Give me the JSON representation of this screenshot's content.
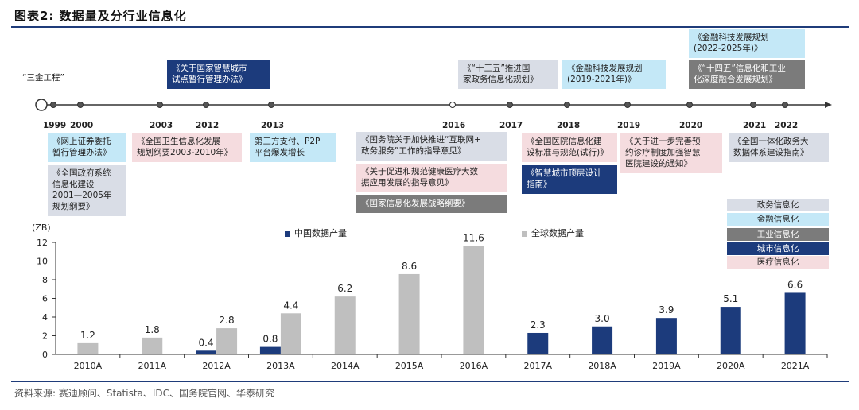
{
  "title": "图表2:  数据量及分行业信息化",
  "source": "资料来源: 赛迪顾问、Statista、IDC、国务院官网、华泰研究",
  "colors": {
    "china": "#1c3b7c",
    "global": "#bfbfbf",
    "gov": "#d9dde6",
    "fin": "#c4e8f7",
    "ind": "#7b7b7b",
    "city": "#1c3b7c",
    "med": "#f5dcdf"
  },
  "timeline": {
    "years": [
      "1999",
      "2000",
      "2003",
      "2012",
      "2013",
      "2016",
      "2017",
      "2018",
      "2019",
      "2020",
      "2021",
      "2022"
    ],
    "events_above": [
      {
        "text": "“三金工程”",
        "cat": "plain"
      },
      {
        "text": "《关于国家智慧城市\n试点暂行管理办法》",
        "cat": "city"
      },
      {
        "text": "《“十三五”推进国\n家政务信息化规划》",
        "cat": "gov"
      },
      {
        "text": "《金融科技发展规划\n(2019-2021年)》",
        "cat": "fin"
      },
      {
        "text": "《金融科技发展规划\n(2022-2025年)》",
        "cat": "fin"
      },
      {
        "text": "《“十四五”信息化和工业\n化深度融合发展规划》",
        "cat": "ind"
      }
    ],
    "events_below": [
      {
        "text": "《网上证券委托\n暂行管理办法》",
        "cat": "fin"
      },
      {
        "text": "《全国政府系统\n信息化建设\n2001—2005年\n规划纲要》",
        "cat": "gov"
      },
      {
        "text": "《全国卫生信息化发展\n规划纲要2003-2010年》",
        "cat": "med"
      },
      {
        "text": "第三方支付、P2P\n平台爆发增长",
        "cat": "fin"
      },
      {
        "text": "《国务院关于加快推进“互联网+\n政务服务”工作的指导意见》",
        "cat": "gov"
      },
      {
        "text": "《关于促进和规范健康医疗大数\n据应用发展的指导意见》",
        "cat": "med"
      },
      {
        "text": "《国家信息化发展战略纲要》",
        "cat": "ind"
      },
      {
        "text": "《全国医院信息化建\n设标准与规范(试行)》",
        "cat": "med"
      },
      {
        "text": "《智慧城市顶层设计\n指南》",
        "cat": "city"
      },
      {
        "text": "《关于进一步完善预\n约诊疗制度加强智慧\n医院建设的通知》",
        "cat": "med"
      },
      {
        "text": "《全国一体化政务大\n数据体系建设指南》",
        "cat": "gov"
      }
    ]
  },
  "category_legend": [
    "政务信息化",
    "金融信息化",
    "工业信息化",
    "城市信息化",
    "医疗信息化"
  ],
  "chart_data": {
    "type": "bar",
    "ylabel": "(ZB)",
    "ylim": [
      0,
      12
    ],
    "yticks": [
      0,
      2,
      4,
      6,
      8,
      10,
      12
    ],
    "categories": [
      "2010A",
      "2011A",
      "2012A",
      "2013A",
      "2014A",
      "2015A",
      "2016A",
      "2017A",
      "2018A",
      "2019A",
      "2020A",
      "2021A"
    ],
    "series": [
      {
        "name": "中国数据产量",
        "values": [
          null,
          null,
          0.4,
          0.8,
          null,
          null,
          null,
          2.3,
          3.0,
          3.9,
          5.1,
          6.6
        ],
        "labels": [
          "",
          "",
          "0.4",
          "0.8",
          "",
          "",
          "",
          "2.3",
          "3.0",
          "3.9",
          "5.1",
          "6.6"
        ]
      },
      {
        "name": "全球数据产量",
        "values": [
          1.2,
          1.8,
          2.8,
          4.4,
          6.2,
          8.6,
          11.6,
          null,
          null,
          null,
          null,
          null
        ],
        "labels": [
          "1.2",
          "1.8",
          "2.8",
          "4.4",
          "6.2",
          "8.6",
          "11.6",
          "",
          "",
          "",
          "",
          ""
        ]
      }
    ],
    "legend": "top"
  }
}
